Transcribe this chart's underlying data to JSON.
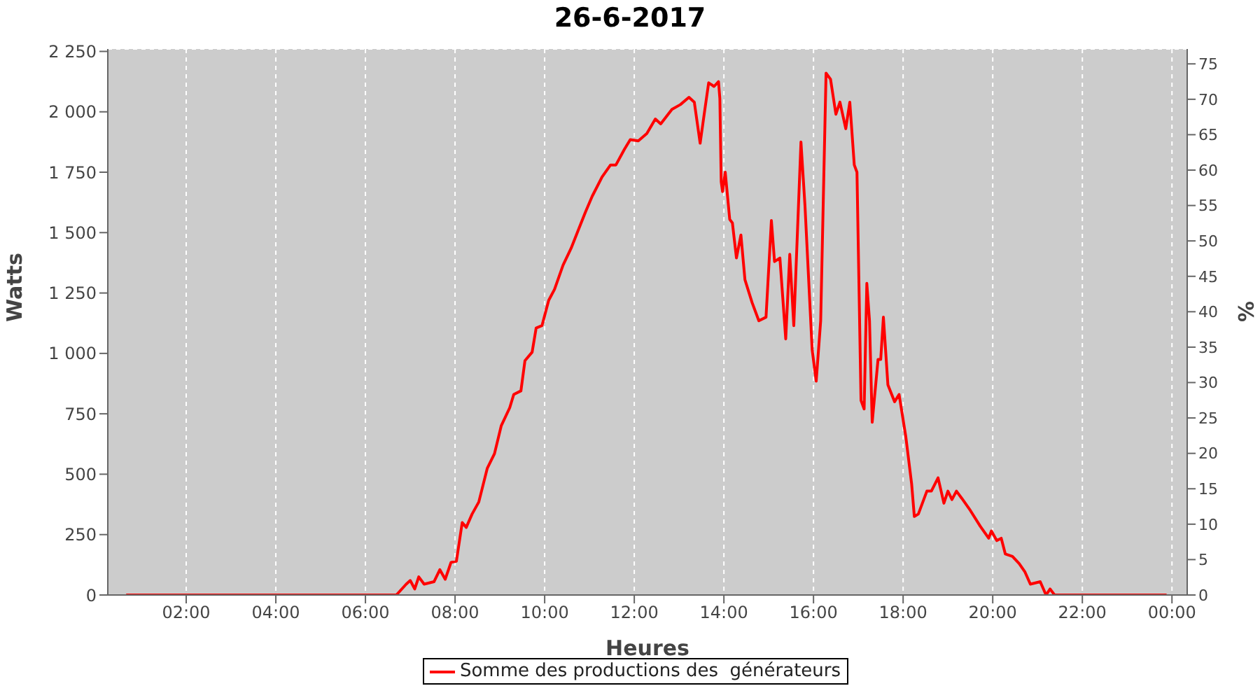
{
  "chart_data": {
    "type": "line",
    "title": "26-6-2017",
    "xlabel": "Heures",
    "ylabel": "Watts",
    "y2label": "%",
    "x": [
      0.66,
      6.69,
      6.91,
      7.0,
      7.1,
      7.19,
      7.31,
      7.53,
      7.66,
      7.78,
      7.91,
      8.03,
      8.16,
      8.25,
      8.38,
      8.53,
      8.72,
      8.88,
      9.03,
      9.22,
      9.31,
      9.47,
      9.56,
      9.72,
      9.81,
      9.94,
      10.09,
      10.22,
      10.41,
      10.59,
      10.75,
      10.91,
      11.06,
      11.28,
      11.47,
      11.59,
      11.78,
      11.91,
      12.09,
      12.28,
      12.47,
      12.59,
      12.84,
      13.03,
      13.22,
      13.34,
      13.47,
      13.56,
      13.66,
      13.78,
      13.88,
      13.91,
      13.94,
      13.97,
      14.03,
      14.13,
      14.19,
      14.28,
      14.38,
      14.47,
      14.63,
      14.78,
      14.94,
      15.06,
      15.13,
      15.25,
      15.38,
      15.47,
      15.56,
      15.72,
      15.81,
      15.97,
      16.06,
      16.16,
      16.28,
      16.38,
      16.5,
      16.59,
      16.72,
      16.81,
      16.91,
      16.97,
      17.06,
      17.13,
      17.19,
      17.25,
      17.31,
      17.44,
      17.5,
      17.56,
      17.66,
      17.81,
      17.91,
      18.06,
      18.19,
      18.25,
      18.34,
      18.53,
      18.63,
      18.78,
      18.91,
      19.0,
      19.09,
      19.19,
      19.31,
      19.5,
      19.72,
      19.91,
      19.97,
      20.09,
      20.19,
      20.28,
      20.44,
      20.59,
      20.72,
      20.84,
      21.06,
      21.19,
      21.28,
      21.38,
      23.88
    ],
    "series": [
      {
        "name": "Somme des productions des  générateurs",
        "color": "#ff0000",
        "values": [
          0,
          0,
          45,
          60,
          25,
          75,
          45,
          55,
          105,
          65,
          135,
          140,
          300,
          280,
          335,
          385,
          525,
          585,
          700,
          775,
          830,
          845,
          970,
          1005,
          1105,
          1115,
          1220,
          1265,
          1365,
          1435,
          1510,
          1585,
          1650,
          1730,
          1780,
          1780,
          1845,
          1885,
          1880,
          1910,
          1970,
          1950,
          2010,
          2030,
          2060,
          2040,
          1870,
          1990,
          2120,
          2105,
          2125,
          2055,
          1710,
          1670,
          1750,
          1555,
          1540,
          1395,
          1490,
          1305,
          1210,
          1135,
          1150,
          1550,
          1380,
          1395,
          1060,
          1410,
          1115,
          1875,
          1610,
          1015,
          885,
          1135,
          2160,
          2135,
          1990,
          2040,
          1930,
          2040,
          1780,
          1750,
          805,
          770,
          1290,
          1135,
          715,
          975,
          975,
          1150,
          870,
          800,
          830,
          655,
          460,
          325,
          335,
          430,
          430,
          485,
          380,
          430,
          395,
          430,
          400,
          350,
          285,
          235,
          265,
          225,
          235,
          170,
          160,
          130,
          95,
          45,
          55,
          0,
          25,
          0,
          0
        ]
      }
    ],
    "xlim": [
      0.25,
      24.34
    ],
    "xticks": [
      {
        "value": 2,
        "label": "02:00"
      },
      {
        "value": 4,
        "label": "04:00"
      },
      {
        "value": 6,
        "label": "06:00"
      },
      {
        "value": 8,
        "label": "08:00"
      },
      {
        "value": 10,
        "label": "10:00"
      },
      {
        "value": 12,
        "label": "12:00"
      },
      {
        "value": 14,
        "label": "14:00"
      },
      {
        "value": 16,
        "label": "16:00"
      },
      {
        "value": 18,
        "label": "18:00"
      },
      {
        "value": 20,
        "label": "20:00"
      },
      {
        "value": 22,
        "label": "22:00"
      },
      {
        "value": 24,
        "label": "00:00"
      }
    ],
    "ylim": [
      0,
      2260
    ],
    "yticks": [
      0,
      250,
      500,
      750,
      {
        "value": 1000,
        "label": "1 000"
      },
      {
        "value": 1250,
        "label": "1 250"
      },
      {
        "value": 1500,
        "label": "1 500"
      },
      {
        "value": 1750,
        "label": "1 750"
      },
      {
        "value": 2000,
        "label": "2 000"
      },
      {
        "value": 2250,
        "label": "2 250"
      }
    ],
    "y2lim": [
      0,
      77.1
    ],
    "y2ticks": [
      0,
      5,
      10,
      15,
      20,
      25,
      30,
      35,
      40,
      45,
      50,
      55,
      60,
      65,
      70,
      75
    ],
    "grid": true,
    "legend": "bottom",
    "marker": "none",
    "line_style": "solid"
  }
}
